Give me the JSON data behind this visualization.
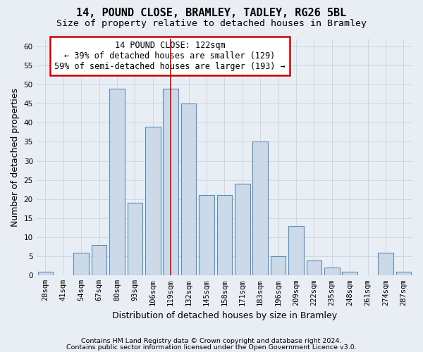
{
  "title": "14, POUND CLOSE, BRAMLEY, TADLEY, RG26 5BL",
  "subtitle": "Size of property relative to detached houses in Bramley",
  "xlabel": "Distribution of detached houses by size in Bramley",
  "ylabel": "Number of detached properties",
  "bar_labels": [
    "28sqm",
    "41sqm",
    "54sqm",
    "67sqm",
    "80sqm",
    "93sqm",
    "106sqm",
    "119sqm",
    "132sqm",
    "145sqm",
    "158sqm",
    "171sqm",
    "183sqm",
    "196sqm",
    "209sqm",
    "222sqm",
    "235sqm",
    "248sqm",
    "261sqm",
    "274sqm",
    "287sqm"
  ],
  "bar_values": [
    1,
    0,
    6,
    8,
    49,
    19,
    39,
    49,
    45,
    21,
    21,
    24,
    35,
    5,
    13,
    4,
    2,
    1,
    0,
    6,
    1
  ],
  "bar_color": "#ccd9e8",
  "bar_edge_color": "#5b8db8",
  "property_bin_index": 7,
  "annotation_text": "14 POUND CLOSE: 122sqm\n← 39% of detached houses are smaller (129)\n59% of semi-detached houses are larger (193) →",
  "annotation_box_color": "#ffffff",
  "annotation_box_edge_color": "#cc0000",
  "vline_color": "#cc0000",
  "ylim": [
    0,
    62
  ],
  "yticks": [
    0,
    5,
    10,
    15,
    20,
    25,
    30,
    35,
    40,
    45,
    50,
    55,
    60
  ],
  "grid_color": "#c8d4e0",
  "background_color": "#e8eef4",
  "footer_line1": "Contains HM Land Registry data © Crown copyright and database right 2024.",
  "footer_line2": "Contains public sector information licensed under the Open Government Licence v3.0.",
  "title_fontsize": 11,
  "subtitle_fontsize": 9.5,
  "axis_label_fontsize": 9,
  "tick_fontsize": 7.5,
  "footer_fontsize": 6.8
}
